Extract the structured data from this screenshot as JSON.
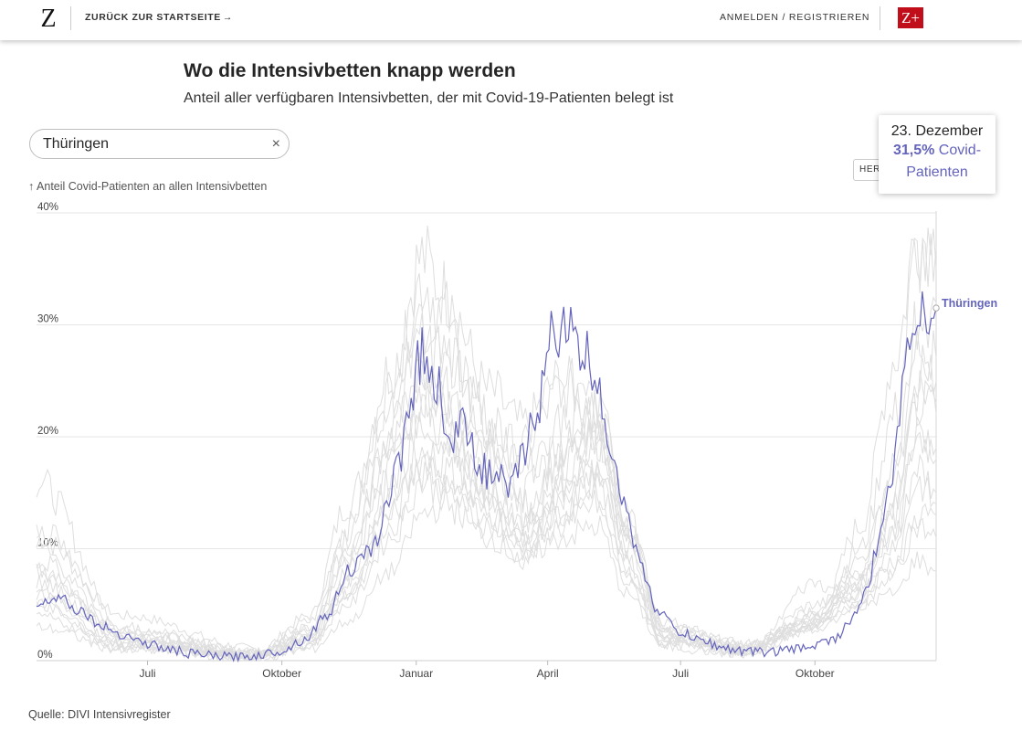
{
  "header": {
    "logo": "Z",
    "back_label": "ZURÜCK ZUR STARTSEITE",
    "back_arrow": "→",
    "login_label": "ANMELDEN / REGISTRIEREN",
    "zplus_label": "Z+"
  },
  "title": "Wo die Intensivbetten knapp werden",
  "subtitle": "Anteil aller verfügbaren Intensivbetten, der mit Covid-19-Patienten belegt ist",
  "search": {
    "value": "Thüringen",
    "clear_icon": "×"
  },
  "herkunft_label": "HERKUNFT",
  "tooltip": {
    "date": "23. Dezember",
    "value": "31,5",
    "percent_symbol": "%",
    "label_line1": "Covid-",
    "label_line2": "Patienten"
  },
  "source": "Quelle: DIVI Intensivregister",
  "chart_data": {
    "type": "line",
    "ylabel": "↑ Anteil Covid-Patienten an allen Intensivbetten",
    "ylim": [
      0,
      40
    ],
    "yticks": [
      0,
      10,
      20,
      30,
      40
    ],
    "y_tick_suffix": "%",
    "x_range": [
      "2020-04-16",
      "2021-12-23"
    ],
    "xticks": [
      {
        "date": "2020-07-01",
        "label": "Juli"
      },
      {
        "date": "2020-10-01",
        "label": "Oktober"
      },
      {
        "date": "2021-01-01",
        "label": "Januar"
      },
      {
        "date": "2021-04-01",
        "label": "April"
      },
      {
        "date": "2021-07-01",
        "label": "Juli"
      },
      {
        "date": "2021-10-01",
        "label": "Oktober"
      }
    ],
    "grid": true,
    "highlight": {
      "name": "Thüringen",
      "color": "#6464bd",
      "x": [
        "2020-04-16",
        "2020-05-01",
        "2020-05-15",
        "2020-06-01",
        "2020-06-15",
        "2020-07-01",
        "2020-07-15",
        "2020-08-01",
        "2020-08-15",
        "2020-09-01",
        "2020-09-15",
        "2020-10-01",
        "2020-10-15",
        "2020-11-01",
        "2020-11-15",
        "2020-12-01",
        "2020-12-10",
        "2020-12-20",
        "2020-12-27",
        "2021-01-05",
        "2021-01-15",
        "2021-01-25",
        "2021-02-05",
        "2021-02-15",
        "2021-02-25",
        "2021-03-05",
        "2021-03-15",
        "2021-03-25",
        "2021-04-05",
        "2021-04-12",
        "2021-04-20",
        "2021-04-28",
        "2021-05-05",
        "2021-05-15",
        "2021-05-25",
        "2021-06-05",
        "2021-06-15",
        "2021-07-01",
        "2021-07-15",
        "2021-08-01",
        "2021-08-15",
        "2021-09-01",
        "2021-09-15",
        "2021-10-01",
        "2021-10-15",
        "2021-10-25",
        "2021-11-05",
        "2021-11-12",
        "2021-11-20",
        "2021-11-28",
        "2021-12-05",
        "2021-12-12",
        "2021-12-18",
        "2021-12-23"
      ],
      "y": [
        5.0,
        5.8,
        4.5,
        3.0,
        2.3,
        1.5,
        1.0,
        0.6,
        0.4,
        0.3,
        0.5,
        0.9,
        1.8,
        4.0,
        8.0,
        9.5,
        13.0,
        18.0,
        23.0,
        27.5,
        24.5,
        20.0,
        21.0,
        17.0,
        16.5,
        15.0,
        18.0,
        23.0,
        29.0,
        31.0,
        28.0,
        27.0,
        25.0,
        19.0,
        13.0,
        8.0,
        4.5,
        2.5,
        1.8,
        1.1,
        0.8,
        0.8,
        1.0,
        1.4,
        2.0,
        3.5,
        6.0,
        9.5,
        15.0,
        22.0,
        30.0,
        32.5,
        30.0,
        31.5
      ]
    },
    "background": [
      {
        "x": [
          "2020-04-16",
          "2020-06-15",
          "2020-09-15",
          "2020-10-20",
          "2020-11-15",
          "2020-12-15",
          "2021-01-05",
          "2021-01-20",
          "2021-02-20",
          "2021-03-15",
          "2021-04-10",
          "2021-05-05",
          "2021-05-25",
          "2021-06-20",
          "2021-08-15",
          "2021-10-01",
          "2021-11-01",
          "2021-11-25",
          "2021-12-10",
          "2021-12-23"
        ],
        "y": [
          11.0,
          4.0,
          1.0,
          4.0,
          14.0,
          26.0,
          36.0,
          33.0,
          24.0,
          21.0,
          25.0,
          22.0,
          12.0,
          3.5,
          1.3,
          3.0,
          12.0,
          27.0,
          38.0,
          37.0
        ]
      },
      {
        "x": [
          "2020-04-16",
          "2020-06-15",
          "2020-09-15",
          "2020-10-20",
          "2020-11-15",
          "2020-12-15",
          "2021-01-05",
          "2021-01-20",
          "2021-02-20",
          "2021-03-15",
          "2021-04-10",
          "2021-05-05",
          "2021-05-25",
          "2021-06-20",
          "2021-08-15",
          "2021-10-01",
          "2021-11-01",
          "2021-11-25",
          "2021-12-10",
          "2021-12-23"
        ],
        "y": [
          16.0,
          3.0,
          0.8,
          3.5,
          12.0,
          24.0,
          34.0,
          31.0,
          20.0,
          19.0,
          24.0,
          26.0,
          13.0,
          3.0,
          1.5,
          3.5,
          10.0,
          22.0,
          36.0,
          35.0
        ]
      },
      {
        "x": [
          "2020-04-16",
          "2020-06-15",
          "2020-09-15",
          "2020-10-20",
          "2020-11-15",
          "2020-12-15",
          "2021-01-05",
          "2021-01-20",
          "2021-02-20",
          "2021-03-15",
          "2021-04-10",
          "2021-05-05",
          "2021-05-25",
          "2021-06-20",
          "2021-08-15",
          "2021-10-01",
          "2021-11-01",
          "2021-11-25",
          "2021-12-10",
          "2021-12-23"
        ],
        "y": [
          8.0,
          2.5,
          0.7,
          2.5,
          10.0,
          20.0,
          25.0,
          23.0,
          18.0,
          14.0,
          18.0,
          20.0,
          11.0,
          2.5,
          1.2,
          5.0,
          7.0,
          15.0,
          26.0,
          27.0
        ]
      },
      {
        "x": [
          "2020-04-16",
          "2020-06-15",
          "2020-09-15",
          "2020-10-20",
          "2020-11-15",
          "2020-12-15",
          "2021-01-05",
          "2021-01-20",
          "2021-02-20",
          "2021-03-15",
          "2021-04-10",
          "2021-05-05",
          "2021-05-25",
          "2021-06-20",
          "2021-08-15",
          "2021-10-01",
          "2021-11-01",
          "2021-11-25",
          "2021-12-10",
          "2021-12-23"
        ],
        "y": [
          6.0,
          1.5,
          0.5,
          2.0,
          7.0,
          15.0,
          22.0,
          20.0,
          16.0,
          12.0,
          15.0,
          18.0,
          9.0,
          2.0,
          0.9,
          4.0,
          8.0,
          11.0,
          20.0,
          19.0
        ]
      },
      {
        "x": [
          "2020-04-16",
          "2020-06-15",
          "2020-09-15",
          "2020-10-20",
          "2020-11-15",
          "2020-12-15",
          "2021-01-05",
          "2021-01-20",
          "2021-02-20",
          "2021-03-15",
          "2021-04-10",
          "2021-05-05",
          "2021-05-25",
          "2021-06-20",
          "2021-08-15",
          "2021-10-01",
          "2021-11-01",
          "2021-11-25",
          "2021-12-10",
          "2021-12-23"
        ],
        "y": [
          9.0,
          2.0,
          0.6,
          2.0,
          6.0,
          13.0,
          18.0,
          17.0,
          13.0,
          10.0,
          14.0,
          16.0,
          8.0,
          1.8,
          0.8,
          3.0,
          6.0,
          9.0,
          16.0,
          14.0
        ]
      },
      {
        "x": [
          "2020-04-16",
          "2020-06-15",
          "2020-09-15",
          "2020-10-20",
          "2020-11-15",
          "2020-12-15",
          "2021-01-05",
          "2021-01-20",
          "2021-02-20",
          "2021-03-15",
          "2021-04-10",
          "2021-05-05",
          "2021-05-25",
          "2021-06-20",
          "2021-08-15",
          "2021-10-01",
          "2021-11-01",
          "2021-11-25",
          "2021-12-10",
          "2021-12-23"
        ],
        "y": [
          5.0,
          1.2,
          0.4,
          1.5,
          5.0,
          11.0,
          16.0,
          15.0,
          12.0,
          9.0,
          12.0,
          14.0,
          7.0,
          1.5,
          0.7,
          4.5,
          7.0,
          8.0,
          12.0,
          11.0
        ]
      },
      {
        "x": [
          "2020-04-16",
          "2020-06-15",
          "2020-09-15",
          "2020-10-20",
          "2020-11-15",
          "2020-12-15",
          "2021-01-05",
          "2021-01-20",
          "2021-02-20",
          "2021-03-15",
          "2021-04-10",
          "2021-05-05",
          "2021-05-25",
          "2021-06-20",
          "2021-08-15",
          "2021-10-01",
          "2021-11-01",
          "2021-11-25",
          "2021-12-10",
          "2021-12-23"
        ],
        "y": [
          3.0,
          1.0,
          0.3,
          1.0,
          3.5,
          8.0,
          13.0,
          14.0,
          11.0,
          9.0,
          11.0,
          12.0,
          6.0,
          1.2,
          0.6,
          7.0,
          5.0,
          6.0,
          9.0,
          8.0
        ]
      },
      {
        "x": [
          "2020-04-16",
          "2020-06-15",
          "2020-09-15",
          "2020-10-20",
          "2020-11-15",
          "2020-12-15",
          "2021-01-05",
          "2021-01-20",
          "2021-02-20",
          "2021-03-15",
          "2021-04-10",
          "2021-05-05",
          "2021-05-25",
          "2021-06-20",
          "2021-08-15",
          "2021-10-01",
          "2021-11-01",
          "2021-11-25",
          "2021-12-10",
          "2021-12-23"
        ],
        "y": [
          7.0,
          1.8,
          0.5,
          2.2,
          8.0,
          18.0,
          22.0,
          19.0,
          14.0,
          11.0,
          16.0,
          21.0,
          12.0,
          2.2,
          1.0,
          4.0,
          6.0,
          13.0,
          23.0,
          22.0
        ]
      },
      {
        "x": [
          "2020-04-16",
          "2020-06-15",
          "2020-09-15",
          "2020-10-20",
          "2020-11-15",
          "2020-12-15",
          "2021-01-05",
          "2021-01-20",
          "2021-02-20",
          "2021-03-15",
          "2021-04-10",
          "2021-05-05",
          "2021-05-25",
          "2021-06-20",
          "2021-08-15",
          "2021-10-01",
          "2021-11-01",
          "2021-11-25",
          "2021-12-10",
          "2021-12-23"
        ],
        "y": [
          4.0,
          1.1,
          0.4,
          1.6,
          6.0,
          14.0,
          19.0,
          18.0,
          15.0,
          11.0,
          13.0,
          15.0,
          8.0,
          1.6,
          0.8,
          3.5,
          5.0,
          8.0,
          13.0,
          13.0
        ]
      },
      {
        "x": [
          "2020-04-16",
          "2020-06-15",
          "2020-09-15",
          "2020-10-20",
          "2020-11-15",
          "2020-12-15",
          "2021-01-05",
          "2021-01-20",
          "2021-02-20",
          "2021-03-15",
          "2021-04-10",
          "2021-05-05",
          "2021-05-25",
          "2021-06-20",
          "2021-08-15",
          "2021-10-01",
          "2021-11-01",
          "2021-11-25",
          "2021-12-10",
          "2021-12-23"
        ],
        "y": [
          10.0,
          2.2,
          0.6,
          3.0,
          9.0,
          21.0,
          29.0,
          27.0,
          20.0,
          15.0,
          19.0,
          23.0,
          13.0,
          3.0,
          1.3,
          4.0,
          9.0,
          18.0,
          30.0,
          32.0
        ]
      },
      {
        "x": [
          "2020-04-16",
          "2020-06-15",
          "2020-09-15",
          "2020-10-20",
          "2020-11-15",
          "2020-12-15",
          "2021-01-05",
          "2021-01-20",
          "2021-02-20",
          "2021-03-15",
          "2021-04-10",
          "2021-05-05",
          "2021-05-25",
          "2021-06-20",
          "2021-08-15",
          "2021-10-01",
          "2021-11-01",
          "2021-11-25",
          "2021-12-10",
          "2021-12-23"
        ],
        "y": [
          6.0,
          1.6,
          0.5,
          1.8,
          7.0,
          16.0,
          24.0,
          21.0,
          15.0,
          12.0,
          15.0,
          19.0,
          10.0,
          2.0,
          0.9,
          3.0,
          6.0,
          12.0,
          21.0,
          18.0
        ]
      },
      {
        "x": [
          "2020-04-16",
          "2020-06-15",
          "2020-09-15",
          "2020-10-20",
          "2020-11-15",
          "2020-12-15",
          "2021-01-05",
          "2021-01-20",
          "2021-02-20",
          "2021-03-15",
          "2021-04-10",
          "2021-05-05",
          "2021-05-25",
          "2021-06-20",
          "2021-08-15",
          "2021-10-01",
          "2021-11-01",
          "2021-11-25",
          "2021-12-10",
          "2021-12-23"
        ],
        "y": [
          12.0,
          2.8,
          0.7,
          2.8,
          11.0,
          23.0,
          30.0,
          28.0,
          22.0,
          17.0,
          21.0,
          22.0,
          12.0,
          2.6,
          1.1,
          3.2,
          8.0,
          17.0,
          27.0,
          25.0
        ]
      },
      {
        "x": [
          "2020-04-16",
          "2020-06-15",
          "2020-09-15",
          "2020-10-20",
          "2020-11-15",
          "2020-12-15",
          "2021-01-05",
          "2021-01-20",
          "2021-02-20",
          "2021-03-15",
          "2021-04-10",
          "2021-05-05",
          "2021-05-25",
          "2021-06-20",
          "2021-08-15",
          "2021-10-01",
          "2021-11-01",
          "2021-11-25",
          "2021-12-10",
          "2021-12-23"
        ],
        "y": [
          5.0,
          1.4,
          0.4,
          1.4,
          5.5,
          12.0,
          17.0,
          16.0,
          13.0,
          10.0,
          13.0,
          17.0,
          9.0,
          1.8,
          0.8,
          2.8,
          5.0,
          10.0,
          17.0,
          15.0
        ]
      },
      {
        "x": [
          "2020-04-16",
          "2020-06-15",
          "2020-09-15",
          "2020-10-20",
          "2020-11-15",
          "2020-12-15",
          "2021-01-05",
          "2021-01-20",
          "2021-02-20",
          "2021-03-15",
          "2021-04-10",
          "2021-05-05",
          "2021-05-25",
          "2021-06-20",
          "2021-08-15",
          "2021-10-01",
          "2021-11-01",
          "2021-11-25",
          "2021-12-10",
          "2021-12-23"
        ],
        "y": [
          8.0,
          1.9,
          0.5,
          2.4,
          8.5,
          19.0,
          26.0,
          24.0,
          18.0,
          13.0,
          17.0,
          20.0,
          11.0,
          2.4,
          1.0,
          3.4,
          7.0,
          14.0,
          24.0,
          23.0
        ]
      }
    ]
  }
}
